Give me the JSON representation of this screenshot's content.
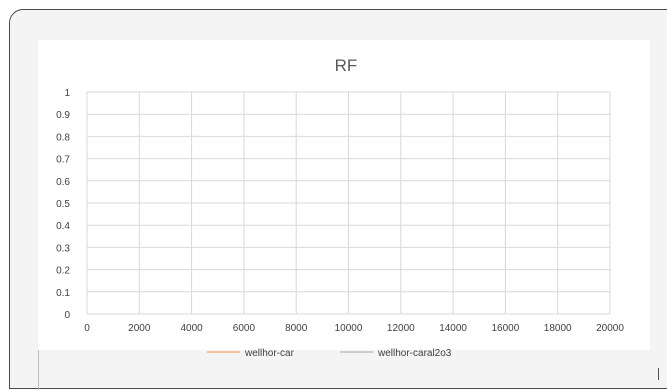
{
  "chart_data": {
    "type": "line",
    "title": "RF",
    "xlabel": "",
    "ylabel": "",
    "xlim": [
      0,
      20000
    ],
    "ylim": [
      0,
      1
    ],
    "x_ticks": [
      "0",
      "2000",
      "4000",
      "6000",
      "8000",
      "10000",
      "12000",
      "14000",
      "16000",
      "18000",
      "20000"
    ],
    "y_ticks": [
      "0",
      "0.1",
      "0.2",
      "0.3",
      "0.4",
      "0.5",
      "0.6",
      "0.7",
      "0.8",
      "0.9",
      "1"
    ],
    "grid": true,
    "legend_position": "bottom",
    "series": [
      {
        "name": "wellhor-car",
        "color": "#f4b183",
        "x": [],
        "y": []
      },
      {
        "name": "wellhor-caral2o3",
        "color": "#bfbfbf",
        "x": [],
        "y": []
      }
    ]
  }
}
